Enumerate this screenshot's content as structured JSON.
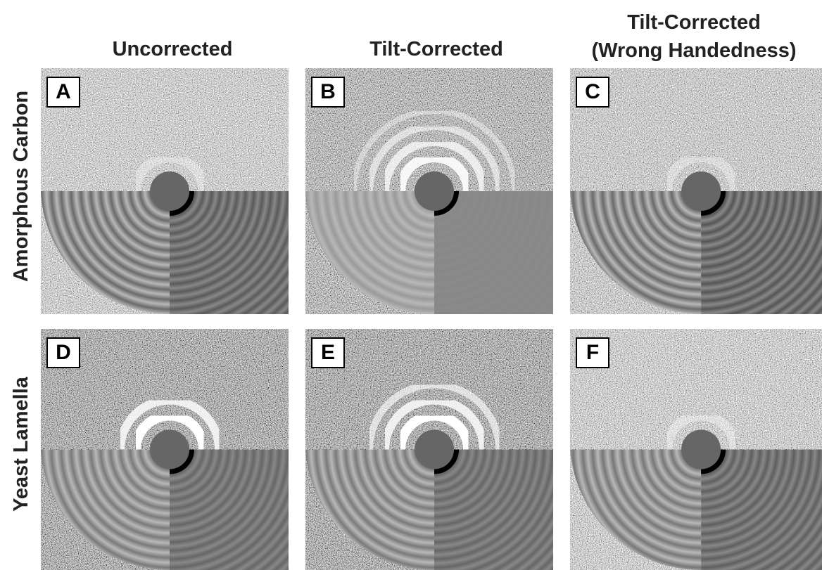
{
  "column_headers": [
    {
      "lines": [
        "Uncorrected"
      ]
    },
    {
      "lines": [
        "Tilt-Corrected"
      ]
    },
    {
      "lines": [
        "Tilt-Corrected",
        "(Wrong Handedness)"
      ]
    }
  ],
  "row_labels": [
    "Amorphous Carbon",
    "Yeast Lamella"
  ],
  "panels": [
    "A",
    "B",
    "C",
    "D",
    "E",
    "F"
  ]
}
